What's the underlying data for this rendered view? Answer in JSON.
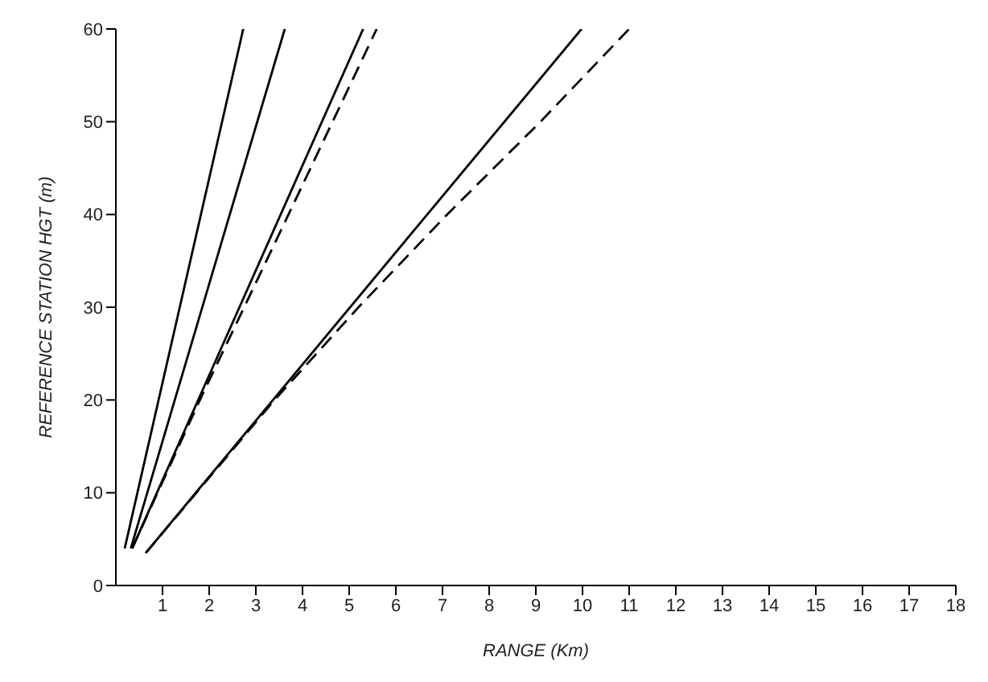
{
  "chart_data": {
    "type": "line",
    "xlabel": "RANGE (Km)",
    "ylabel": "REFERENCE STATION HGT (m)",
    "xlim": [
      0,
      18
    ],
    "ylim": [
      0,
      60
    ],
    "xticks": [
      1,
      2,
      3,
      4,
      5,
      6,
      7,
      8,
      9,
      10,
      11,
      12,
      13,
      14,
      15,
      16,
      17,
      18
    ],
    "yticks": [
      0,
      10,
      20,
      30,
      40,
      50,
      60
    ],
    "grid": false,
    "marker": "none",
    "series": [
      {
        "color": "#000000",
        "line_style": "solid",
        "x": [
          0.19,
          2.73
        ],
        "values": [
          4,
          60
        ]
      },
      {
        "color": "#000000",
        "line_style": "solid",
        "x": [
          0.32,
          3.62
        ],
        "values": [
          4,
          60
        ]
      },
      {
        "color": "#000000",
        "line_style": "solid",
        "x": [
          0.35,
          5.3
        ],
        "values": [
          4,
          60
        ]
      },
      {
        "color": "#000000",
        "line_style": "dashed",
        "x": [
          0.35,
          1.8,
          3.7,
          5.59
        ],
        "values": [
          4,
          20,
          40,
          60
        ]
      },
      {
        "color": "#000000",
        "line_style": "solid",
        "x": [
          0.64,
          9.98
        ],
        "values": [
          3.5,
          60
        ]
      },
      {
        "color": "#000000",
        "line_style": "dashed",
        "x": [
          0.64,
          3.4,
          5.2,
          7.1,
          9.1,
          11.0
        ],
        "values": [
          3.5,
          20,
          30,
          40,
          50,
          60
        ]
      }
    ]
  }
}
